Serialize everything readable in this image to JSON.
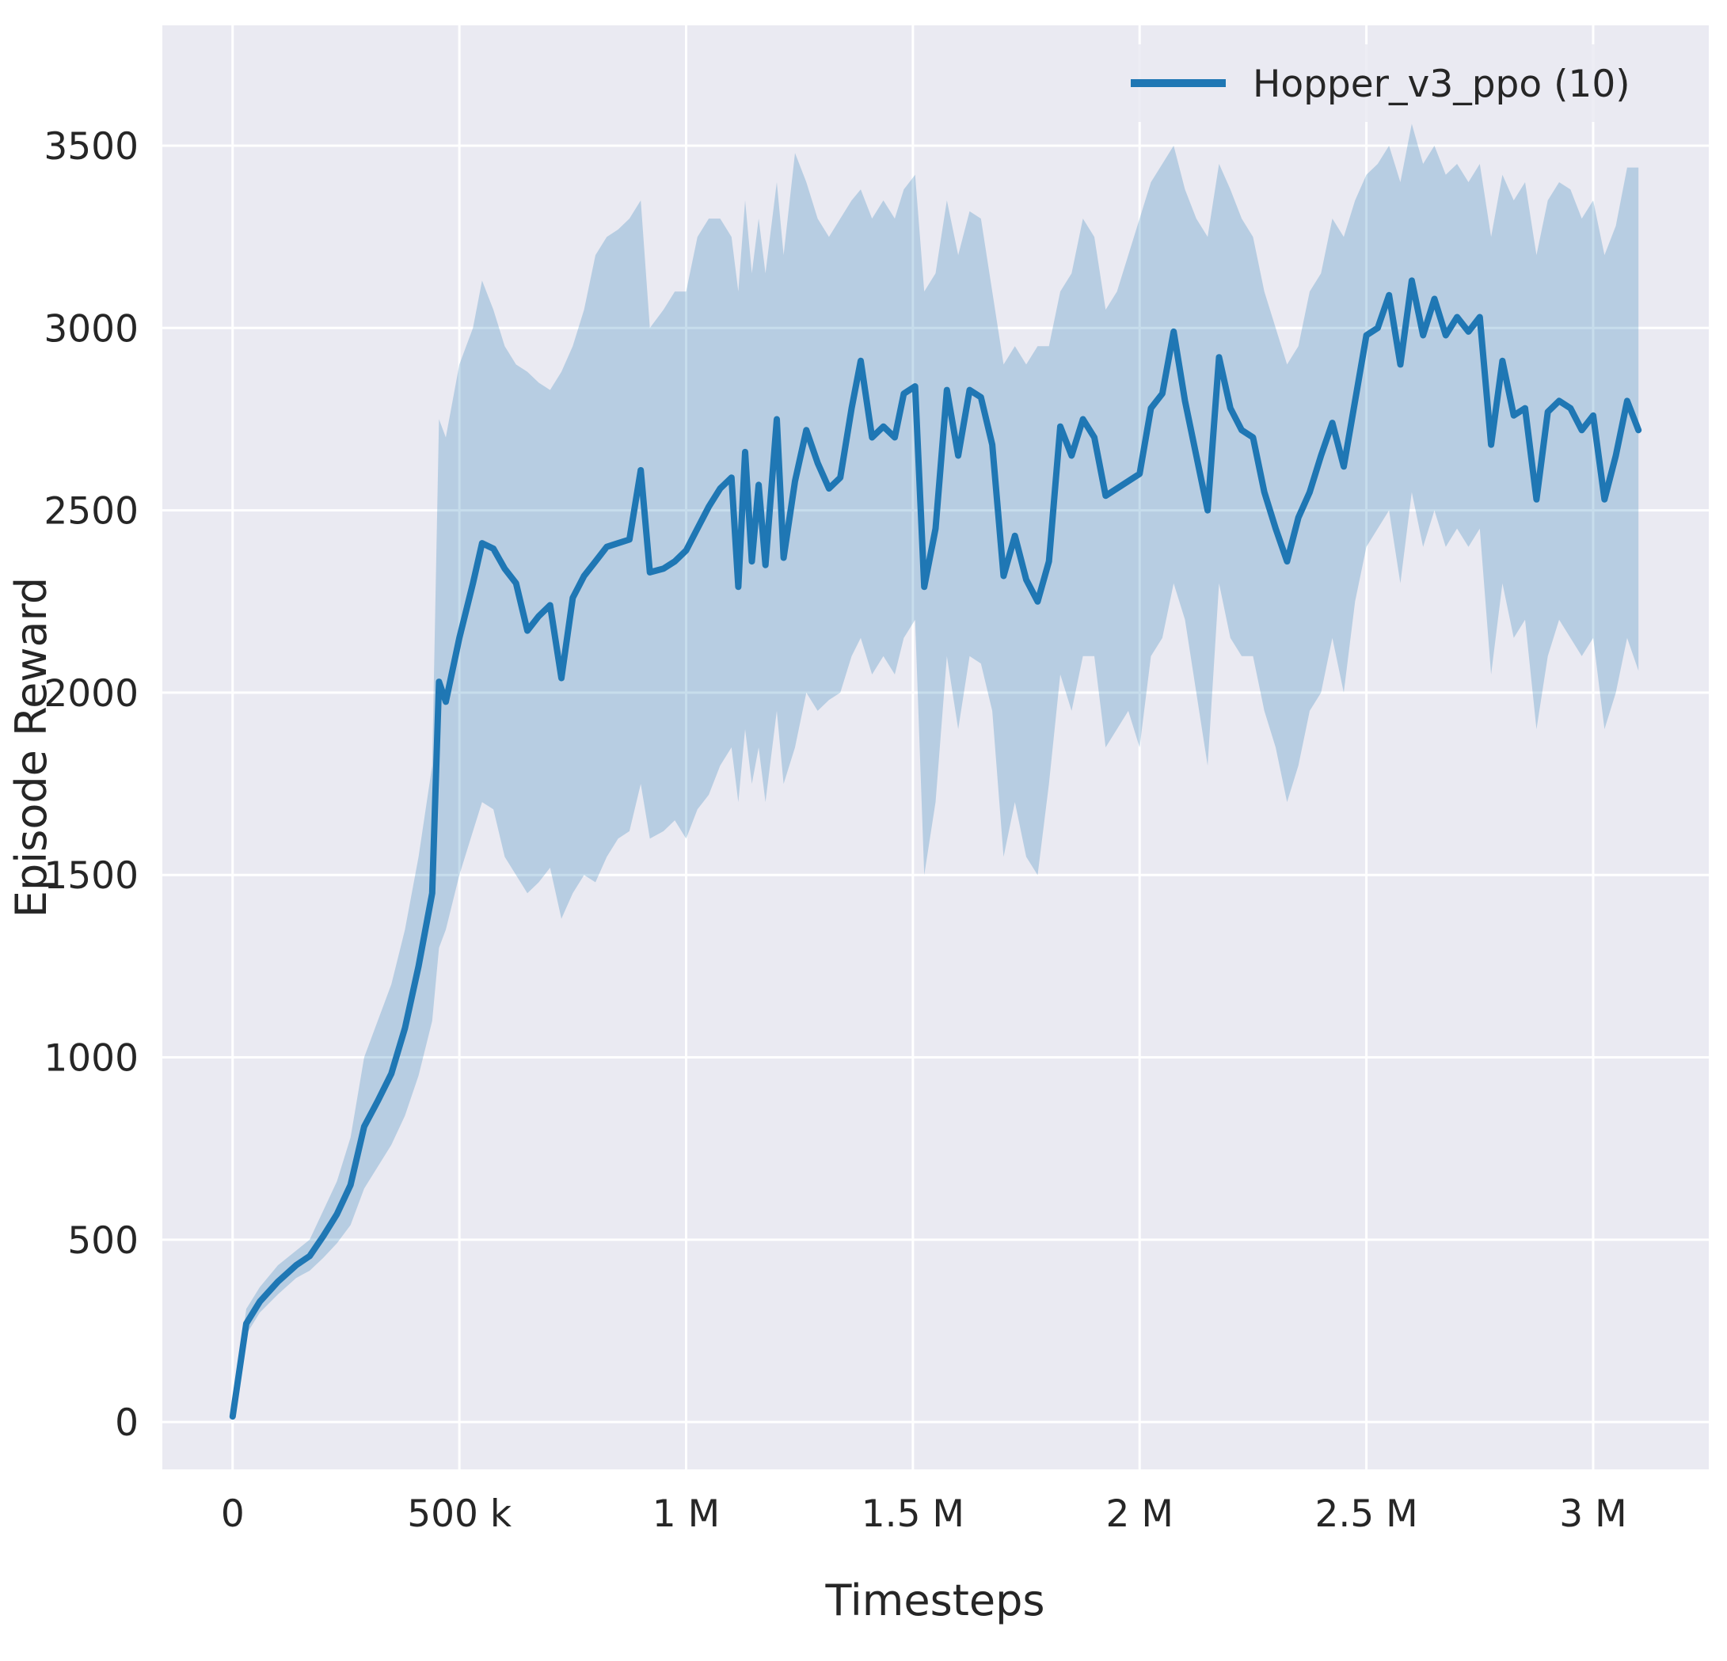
{
  "chart_data": {
    "type": "line",
    "title": "",
    "xlabel": "Timesteps",
    "ylabel": "Episode Reward",
    "grid": true,
    "legend_position": "upper right",
    "xlim": [
      -155000,
      3255000
    ],
    "ylim": [
      -130,
      3830
    ],
    "x_ticks": [
      {
        "value": 0,
        "label": "0"
      },
      {
        "value": 500000,
        "label": "500 k"
      },
      {
        "value": 1000000,
        "label": "1 M"
      },
      {
        "value": 1500000,
        "label": "1.5 M"
      },
      {
        "value": 2000000,
        "label": "2 M"
      },
      {
        "value": 2500000,
        "label": "2.5 M"
      },
      {
        "value": 3000000,
        "label": "3 M"
      }
    ],
    "y_ticks": [
      {
        "value": 0,
        "label": "0"
      },
      {
        "value": 500,
        "label": "500"
      },
      {
        "value": 1000,
        "label": "1000"
      },
      {
        "value": 1500,
        "label": "1500"
      },
      {
        "value": 2000,
        "label": "2000"
      },
      {
        "value": 2500,
        "label": "2500"
      },
      {
        "value": 3000,
        "label": "3000"
      },
      {
        "value": 3500,
        "label": "3500"
      }
    ],
    "styles": {
      "figure_bg": "#ffffff",
      "plot_bg": "#eaeaf2",
      "grid_color": "#ffffff",
      "text_color": "#262626"
    },
    "series": [
      {
        "name": "Hopper_v3_ppo (10)",
        "color": "#1f77b4",
        "band_color": "rgba(31,119,180,0.25)",
        "x": [
          0,
          30000,
          60000,
          100000,
          140000,
          170000,
          200000,
          230000,
          260000,
          290000,
          320000,
          350000,
          380000,
          410000,
          440000,
          455000,
          470000,
          500000,
          530000,
          550000,
          575000,
          600000,
          625000,
          650000,
          675000,
          700000,
          725000,
          750000,
          775000,
          800000,
          825000,
          850000,
          875000,
          900000,
          920000,
          950000,
          975000,
          1000000,
          1025000,
          1050000,
          1075000,
          1100000,
          1115000,
          1130000,
          1145000,
          1160000,
          1175000,
          1200000,
          1215000,
          1240000,
          1265000,
          1290000,
          1315000,
          1340000,
          1365000,
          1385000,
          1410000,
          1435000,
          1460000,
          1480000,
          1505000,
          1525000,
          1550000,
          1575000,
          1600000,
          1625000,
          1650000,
          1675000,
          1700000,
          1725000,
          1750000,
          1775000,
          1800000,
          1825000,
          1850000,
          1875000,
          1900000,
          1925000,
          1950000,
          1975000,
          2000000,
          2025000,
          2050000,
          2075000,
          2100000,
          2125000,
          2150000,
          2175000,
          2200000,
          2225000,
          2250000,
          2275000,
          2300000,
          2325000,
          2350000,
          2375000,
          2400000,
          2425000,
          2450000,
          2475000,
          2500000,
          2525000,
          2550000,
          2575000,
          2600000,
          2625000,
          2650000,
          2675000,
          2700000,
          2725000,
          2750000,
          2775000,
          2800000,
          2825000,
          2850000,
          2875000,
          2900000,
          2925000,
          2950000,
          2975000,
          3000000,
          3025000,
          3050000,
          3075000,
          3100000
        ],
        "mean": [
          15,
          270,
          330,
          385,
          430,
          455,
          510,
          570,
          650,
          810,
          880,
          955,
          1080,
          1250,
          1450,
          2030,
          1975,
          2150,
          2300,
          2410,
          2395,
          2340,
          2300,
          2170,
          2210,
          2240,
          2040,
          2260,
          2320,
          2360,
          2400,
          2410,
          2420,
          2610,
          2330,
          2340,
          2360,
          2390,
          2450,
          2510,
          2560,
          2590,
          2290,
          2660,
          2360,
          2570,
          2350,
          2750,
          2370,
          2580,
          2720,
          2630,
          2560,
          2590,
          2780,
          2910,
          2700,
          2730,
          2700,
          2820,
          2840,
          2290,
          2450,
          2830,
          2650,
          2830,
          2810,
          2680,
          2320,
          2430,
          2310,
          2250,
          2360,
          2730,
          2650,
          2750,
          2700,
          2540,
          2560,
          2580,
          2600,
          2780,
          2820,
          2990,
          2800,
          2650,
          2500,
          2920,
          2780,
          2720,
          2700,
          2550,
          2450,
          2360,
          2480,
          2550,
          2650,
          2740,
          2620,
          2800,
          2980,
          3000,
          3090,
          2900,
          3130,
          2980,
          3080,
          2980,
          3030,
          2990,
          3030,
          2680,
          2910,
          2760,
          2780,
          2530,
          2770,
          2800,
          2780,
          2720,
          2760,
          2530,
          2650,
          2800,
          2720
        ],
        "lo": [
          5,
          240,
          300,
          350,
          395,
          415,
          450,
          490,
          540,
          640,
          700,
          760,
          840,
          950,
          1100,
          1300,
          1350,
          1500,
          1620,
          1700,
          1680,
          1550,
          1500,
          1450,
          1480,
          1520,
          1380,
          1450,
          1500,
          1480,
          1550,
          1600,
          1620,
          1750,
          1600,
          1620,
          1650,
          1600,
          1680,
          1720,
          1800,
          1850,
          1700,
          1900,
          1750,
          1850,
          1700,
          1950,
          1750,
          1850,
          2000,
          1950,
          1980,
          2000,
          2100,
          2150,
          2050,
          2100,
          2050,
          2150,
          2200,
          1500,
          1700,
          2100,
          1900,
          2100,
          2080,
          1950,
          1550,
          1700,
          1550,
          1500,
          1750,
          2050,
          1950,
          2100,
          2100,
          1850,
          1900,
          1950,
          1850,
          2100,
          2150,
          2300,
          2200,
          2000,
          1800,
          2300,
          2150,
          2100,
          2100,
          1950,
          1850,
          1700,
          1800,
          1950,
          2000,
          2150,
          2000,
          2250,
          2400,
          2450,
          2500,
          2300,
          2550,
          2400,
          2500,
          2400,
          2450,
          2400,
          2450,
          2050,
          2300,
          2150,
          2200,
          1900,
          2100,
          2200,
          2150,
          2100,
          2150,
          1900,
          2000,
          2150,
          2060
        ],
        "hi": [
          40,
          310,
          370,
          430,
          470,
          500,
          580,
          660,
          780,
          1000,
          1100,
          1200,
          1350,
          1550,
          1800,
          2750,
          2700,
          2900,
          3000,
          3130,
          3050,
          2950,
          2900,
          2880,
          2850,
          2830,
          2880,
          2950,
          3050,
          3200,
          3250,
          3270,
          3300,
          3350,
          3000,
          3050,
          3100,
          3100,
          3250,
          3300,
          3300,
          3250,
          3100,
          3350,
          3150,
          3300,
          3150,
          3400,
          3200,
          3480,
          3400,
          3300,
          3250,
          3300,
          3350,
          3380,
          3300,
          3350,
          3300,
          3380,
          3420,
          3100,
          3150,
          3350,
          3200,
          3320,
          3300,
          3100,
          2900,
          2950,
          2900,
          2950,
          2950,
          3100,
          3150,
          3300,
          3250,
          3050,
          3100,
          3200,
          3300,
          3400,
          3450,
          3500,
          3380,
          3300,
          3250,
          3450,
          3380,
          3300,
          3250,
          3100,
          3000,
          2900,
          2950,
          3100,
          3150,
          3300,
          3250,
          3350,
          3420,
          3450,
          3500,
          3400,
          3560,
          3450,
          3500,
          3420,
          3450,
          3400,
          3450,
          3250,
          3420,
          3350,
          3400,
          3200,
          3350,
          3400,
          3380,
          3300,
          3350,
          3200,
          3280,
          3440,
          3440
        ]
      }
    ]
  }
}
